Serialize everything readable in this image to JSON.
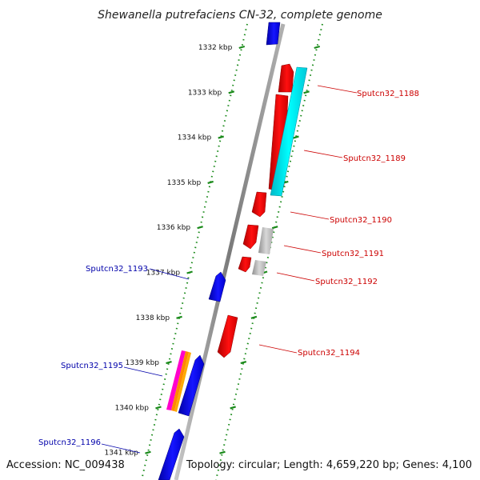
{
  "title": "Shewanella putrefaciens CN-32, complete genome",
  "footer": {
    "accession": "Accession: NC_009438",
    "topology": "Topology: circular; Length: 4,659,220 bp; Genes: 4,100"
  },
  "colors": {
    "backbone": "#8a8a8a",
    "tick": "#1a8a1a",
    "forward_gene": "#ff0000",
    "reverse_gene": "#0000ee",
    "forward_label": "#cc0000",
    "reverse_label": "#0000aa",
    "cds_feature": "#00e5ee",
    "pseudo_feature": "#b8b8b8"
  },
  "ticks": [
    {
      "kbp": 1332,
      "label": "1332 kbp"
    },
    {
      "kbp": 1333,
      "label": "1333 kbp"
    },
    {
      "kbp": 1334,
      "label": "1334 kbp"
    },
    {
      "kbp": 1335,
      "label": "1335 kbp"
    },
    {
      "kbp": 1336,
      "label": "1336 kbp"
    },
    {
      "kbp": 1337,
      "label": "1337 kbp"
    },
    {
      "kbp": 1338,
      "label": "1338 kbp"
    },
    {
      "kbp": 1339,
      "label": "1339 kbp"
    },
    {
      "kbp": 1340,
      "label": "1340 kbp"
    },
    {
      "kbp": 1341,
      "label": "1341 kbp"
    }
  ],
  "gene_labels": {
    "g1188": "Sputcn32_1188",
    "g1189": "Sputcn32_1189",
    "g1190": "Sputcn32_1190",
    "g1191": "Sputcn32_1191",
    "g1192": "Sputcn32_1192",
    "g1193": "Sputcn32_1193",
    "g1194": "Sputcn32_1194",
    "g1195": "Sputcn32_1195",
    "g1196": "Sputcn32_1196"
  }
}
